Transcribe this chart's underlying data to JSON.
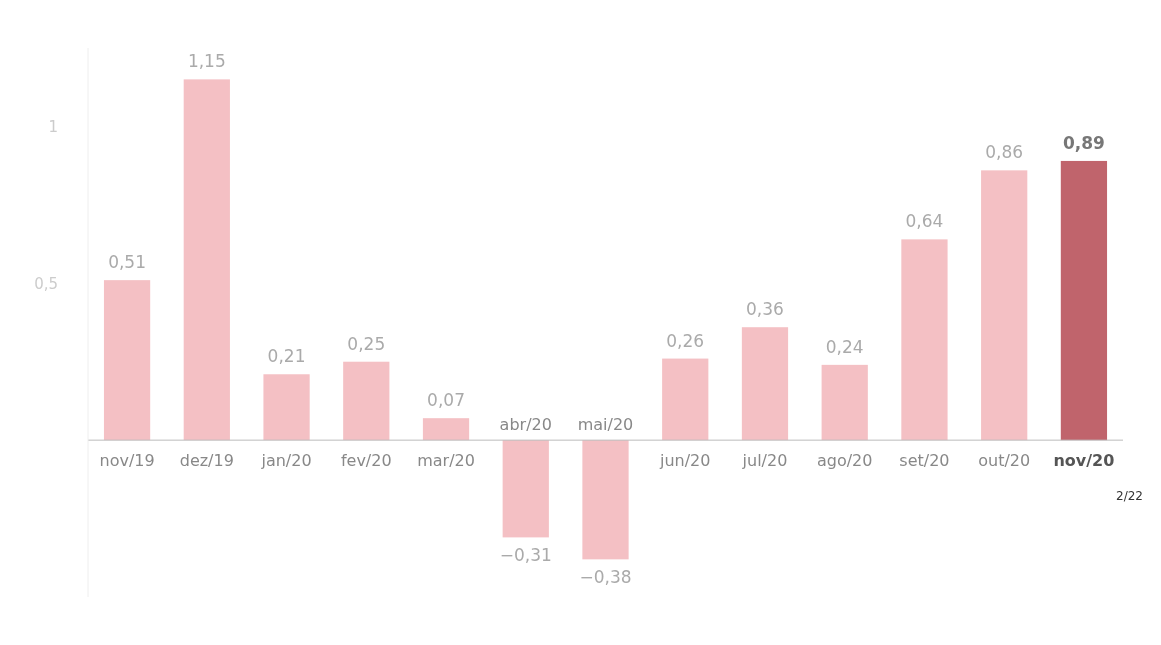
{
  "chart_data": {
    "type": "bar",
    "categories": [
      "nov/19",
      "dez/19",
      "jan/20",
      "fev/20",
      "mar/20",
      "abr/20",
      "mai/20",
      "jun/20",
      "jul/20",
      "ago/20",
      "set/20",
      "out/20",
      "nov/20"
    ],
    "values": [
      0.51,
      1.15,
      0.21,
      0.25,
      0.07,
      -0.31,
      -0.38,
      0.26,
      0.36,
      0.24,
      0.64,
      0.86,
      0.89
    ],
    "colors": [
      "#f4c0c4",
      "#f4c0c4",
      "#f4c0c4",
      "#f4c0c4",
      "#f4c0c4",
      "#f4c0c4",
      "#f4c0c4",
      "#f4c0c4",
      "#f4c0c4",
      "#f4c0c4",
      "#f4c0c4",
      "#f4c0c4",
      "#c0646c"
    ],
    "value_labels": [
      "0,51",
      "1,15",
      "0,21",
      "0,25",
      "0,07",
      "−0,31",
      "−0,38",
      "0,26",
      "0,36",
      "0,24",
      "0,64",
      "0,86",
      "0,89"
    ],
    "ylim": [
      -0.5,
      1.25
    ],
    "yticks": [
      {
        "value": 0.5,
        "label": "0,5"
      },
      {
        "value": 1,
        "label": "1"
      }
    ],
    "grid": false,
    "annotations": [
      "2/22"
    ]
  }
}
